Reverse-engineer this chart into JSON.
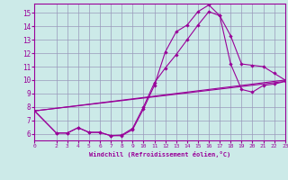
{
  "xlabel": "Windchill (Refroidissement éolien,°C)",
  "bg_color": "#cceae8",
  "grid_color": "#9999bb",
  "line_color": "#990099",
  "xlim": [
    0,
    23
  ],
  "ylim": [
    5.5,
    15.7
  ],
  "xticks": [
    0,
    2,
    3,
    4,
    5,
    6,
    7,
    8,
    9,
    10,
    11,
    12,
    13,
    14,
    15,
    16,
    17,
    18,
    19,
    20,
    21,
    22,
    23
  ],
  "yticks": [
    6,
    7,
    8,
    9,
    10,
    11,
    12,
    13,
    14,
    15
  ],
  "line1_x": [
    0,
    2,
    3,
    4,
    5,
    6,
    7,
    8,
    9,
    10,
    11,
    12,
    13,
    14,
    15,
    16,
    17,
    18,
    19,
    20,
    21,
    22,
    23
  ],
  "line1_y": [
    7.7,
    6.05,
    6.05,
    6.45,
    6.1,
    6.1,
    5.85,
    5.85,
    6.3,
    7.85,
    9.6,
    12.1,
    13.6,
    14.1,
    15.1,
    15.6,
    14.8,
    13.3,
    11.2,
    11.1,
    11.0,
    10.5,
    10.0
  ],
  "line2_x": [
    0,
    2,
    3,
    4,
    5,
    6,
    7,
    8,
    9,
    10,
    11,
    12,
    13,
    14,
    15,
    16,
    17,
    18,
    19,
    20,
    21,
    22,
    23
  ],
  "line2_y": [
    7.7,
    6.05,
    6.05,
    6.45,
    6.1,
    6.1,
    5.85,
    5.9,
    6.4,
    8.0,
    9.8,
    10.9,
    11.9,
    13.0,
    14.1,
    15.1,
    14.8,
    11.2,
    9.3,
    9.1,
    9.6,
    9.7,
    9.9
  ],
  "line3_x": [
    0,
    23
  ],
  "line3_y": [
    7.7,
    10.0
  ],
  "line4_x": [
    0,
    23
  ],
  "line4_y": [
    7.7,
    9.9
  ]
}
